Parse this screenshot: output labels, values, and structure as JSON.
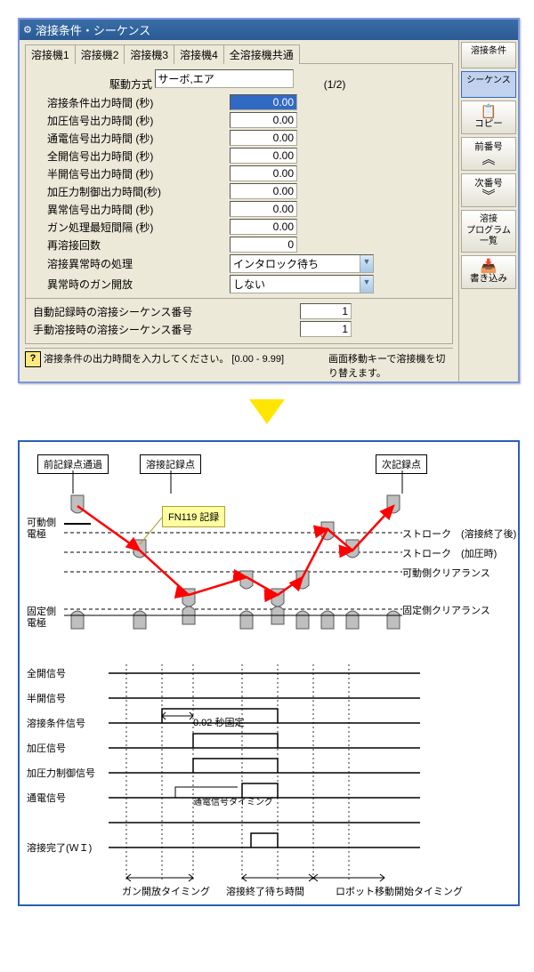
{
  "window": {
    "title": "溶接条件・シーケンス",
    "tabs": [
      "溶接機1",
      "溶接機2",
      "溶接機3",
      "溶接機4",
      "全溶接機共通"
    ],
    "drive_label": "駆動方式",
    "drive_value": "サーボ,エア",
    "page": "(1/2)",
    "fields": [
      {
        "label": "溶接条件出力時間 (秒)",
        "value": "0.00",
        "selected": true
      },
      {
        "label": "加圧信号出力時間 (秒)",
        "value": "0.00"
      },
      {
        "label": "通電信号出力時間 (秒)",
        "value": "0.00"
      },
      {
        "label": "全開信号出力時間 (秒)",
        "value": "0.00"
      },
      {
        "label": "半開信号出力時間 (秒)",
        "value": "0.00"
      },
      {
        "label": "加圧力制御出力時間(秒)",
        "value": "0.00"
      },
      {
        "label": "異常信号出力時間 (秒)",
        "value": "0.00"
      },
      {
        "label": "ガン処理最短間隔 (秒)",
        "value": "0.00"
      },
      {
        "label": "再溶接回数",
        "value": "0"
      }
    ],
    "dropdowns": [
      {
        "label": "溶接異常時の処理",
        "value": "インタロック待ち"
      },
      {
        "label": "異常時のガン開放",
        "value": "しない"
      }
    ],
    "auto": [
      {
        "label": "自動記録時の溶接シーケンス番号",
        "value": "1"
      },
      {
        "label": "手動溶接時の溶接シーケンス番号",
        "value": "1"
      }
    ],
    "hint": "溶接条件の出力時間を入力してください。 [0.00 - 9.99]",
    "hint2": "画面移動キーで溶接機を切り替えます。"
  },
  "sidebar": {
    "b1": "溶接条件",
    "b2": "シーケンス",
    "b3": "コピー",
    "b4": "前番号",
    "b5": "次番号",
    "b6": "溶接\nプログラム\n一覧",
    "b7": "書き込み"
  },
  "diagram": {
    "boxes": {
      "prev": "前記録点通過",
      "weld": "溶接記録点",
      "next": "次記録点"
    },
    "callout": "FN119 記録",
    "labels": {
      "movable": "可動側\n電極",
      "fixed": "固定側\n電極",
      "stroke_end": "ストローク　(溶接終了後)",
      "stroke_press": "ストローク　(加圧時)",
      "mov_clear": "可動側クリアランス",
      "fix_clear": "固定側クリアランス"
    },
    "signals": [
      "全開信号",
      "半開信号",
      "溶接条件信号",
      "加圧信号",
      "加圧力制御信号",
      "通電信号",
      "",
      "溶接完了(ＷＩ)"
    ],
    "sig_note1": "0.02 秒固定",
    "sig_note2": "通電信号タイミング",
    "bottom": [
      "ガン開放タイミング",
      "溶接終了待ち時間",
      "ロボット移動開始タイミング"
    ],
    "style": {
      "electrode_fill": "#bfbfbf",
      "electrode_stroke": "#5a5a5a",
      "arrow_color": "#ff0000",
      "dash": "#000000",
      "timing_x": [
        120,
        160,
        195,
        250,
        290,
        330,
        370
      ]
    }
  }
}
